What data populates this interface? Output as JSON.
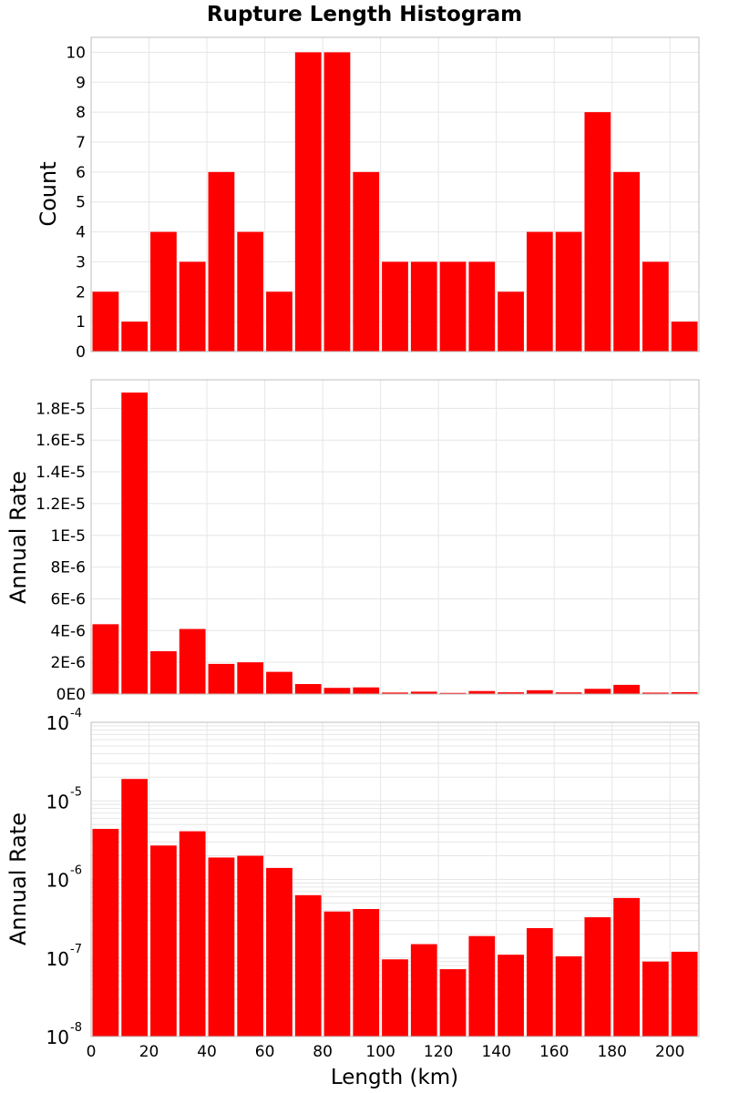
{
  "title": "Rupture Length Histogram",
  "colors": {
    "bar": "#ff0000",
    "grid": "#e6e6e6",
    "frame": "#bfbfbf"
  },
  "chart_data": [
    {
      "type": "bar",
      "ylabel": "Count",
      "xlabel": "Length (km)",
      "bin_width": 10,
      "x": [
        5,
        15,
        25,
        35,
        45,
        55,
        65,
        75,
        85,
        95,
        105,
        115,
        125,
        135,
        145,
        155,
        165,
        175,
        185,
        195,
        205
      ],
      "values": [
        2,
        1,
        4,
        3,
        6,
        4,
        2,
        10,
        10,
        6,
        3,
        3,
        3,
        3,
        2,
        4,
        4,
        8,
        6,
        3,
        1
      ],
      "xlim": [
        0,
        210
      ],
      "ylim": [
        0,
        10.5
      ],
      "yticks": [
        0,
        1,
        2,
        3,
        4,
        5,
        6,
        7,
        8,
        9,
        10
      ],
      "ytick_labels": [
        "0",
        "1",
        "2",
        "3",
        "4",
        "5",
        "6",
        "7",
        "8",
        "9",
        "10"
      ],
      "grid": true
    },
    {
      "type": "bar",
      "ylabel": "Annual Rate",
      "xlabel": "Length (km)",
      "bin_width": 10,
      "x": [
        5,
        15,
        25,
        35,
        45,
        55,
        65,
        75,
        85,
        95,
        105,
        115,
        125,
        135,
        145,
        155,
        165,
        175,
        185,
        195,
        205
      ],
      "values": [
        4.4e-06,
        1.9e-05,
        2.7e-06,
        4.1e-06,
        1.9e-06,
        2e-06,
        1.4e-06,
        6.3e-07,
        3.9e-07,
        4.2e-07,
        9.6e-08,
        1.5e-07,
        7.2e-08,
        1.9e-07,
        1.1e-07,
        2.4e-07,
        1.05e-07,
        3.3e-07,
        5.8e-07,
        9e-08,
        1.2e-07
      ],
      "xlim": [
        0,
        210
      ],
      "ylim": [
        0,
        1.98e-05
      ],
      "yticks": [
        0,
        2e-06,
        4e-06,
        6e-06,
        8e-06,
        1e-05,
        1.2e-05,
        1.4e-05,
        1.6e-05,
        1.8e-05
      ],
      "ytick_labels": [
        "0E0",
        "2E-6",
        "4E-6",
        "6E-6",
        "8E-6",
        "1E-5",
        "1.2E-5",
        "1.4E-5",
        "1.6E-5",
        "1.8E-5"
      ],
      "grid": true
    },
    {
      "type": "bar",
      "ylabel": "Annual Rate",
      "xlabel": "Length (km)",
      "log_y": true,
      "bin_width": 10,
      "x": [
        5,
        15,
        25,
        35,
        45,
        55,
        65,
        75,
        85,
        95,
        105,
        115,
        125,
        135,
        145,
        155,
        165,
        175,
        185,
        195,
        205
      ],
      "values": [
        4.4e-06,
        1.9e-05,
        2.7e-06,
        4.1e-06,
        1.9e-06,
        2e-06,
        1.4e-06,
        6.3e-07,
        3.9e-07,
        4.2e-07,
        9.6e-08,
        1.5e-07,
        7.2e-08,
        1.9e-07,
        1.1e-07,
        2.4e-07,
        1.05e-07,
        3.3e-07,
        5.8e-07,
        9e-08,
        1.2e-07
      ],
      "xlim": [
        0,
        210
      ],
      "ylim": [
        1e-08,
        0.0001
      ],
      "yticks": [
        1e-08,
        1e-07,
        1e-06,
        1e-05,
        0.0001
      ],
      "ytick_labels": [
        {
          "base": "10",
          "exp": "-8"
        },
        {
          "base": "10",
          "exp": "-7"
        },
        {
          "base": "10",
          "exp": "-6"
        },
        {
          "base": "10",
          "exp": "-5"
        },
        {
          "base": "10",
          "exp": "-4"
        }
      ],
      "xticks": [
        0,
        20,
        40,
        60,
        80,
        100,
        120,
        140,
        160,
        180,
        200
      ],
      "xtick_labels": [
        "0",
        "20",
        "40",
        "60",
        "80",
        "100",
        "120",
        "140",
        "160",
        "180",
        "200"
      ],
      "grid": true
    }
  ]
}
